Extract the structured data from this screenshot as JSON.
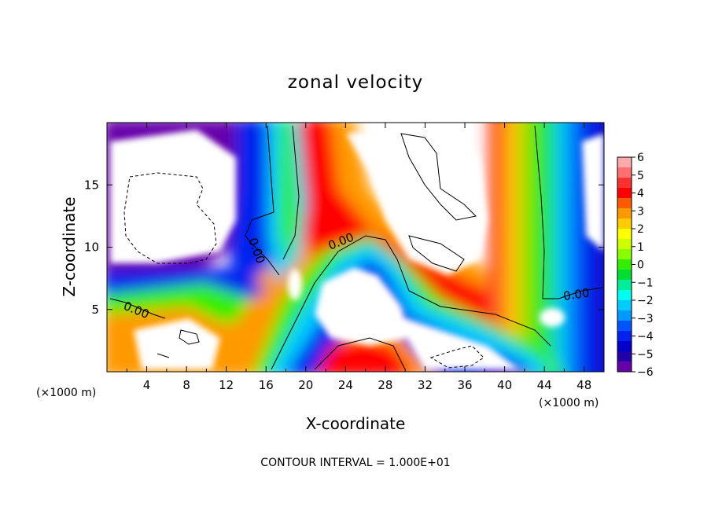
{
  "chart_data": {
    "type": "heatmap",
    "title": "zonal velocity",
    "xlabel": "X-coordinate",
    "ylabel": "Z-coordinate",
    "x_unit_label": "(×1000 m)",
    "x_unit_label_right": "(×1000 m)",
    "xlim": [
      0,
      50
    ],
    "ylim": [
      0,
      20
    ],
    "x_ticks": [
      "4",
      "8",
      "12",
      "16",
      "20",
      "24",
      "28",
      "32",
      "36",
      "40",
      "44",
      "48"
    ],
    "y_ticks": [
      "5",
      "10",
      "15"
    ],
    "colorbar": {
      "range": [
        -6,
        6
      ],
      "tick_labels": [
        "6",
        "5",
        "4",
        "3",
        "2",
        "1",
        "0",
        "−1",
        "−2",
        "−3",
        "−4",
        "−5",
        "−6"
      ],
      "colors": [
        "#ffaaaa",
        "#ff7070",
        "#ff3030",
        "#ff0000",
        "#ff5a00",
        "#ff9900",
        "#ffcc00",
        "#ffff00",
        "#ccff00",
        "#88ff00",
        "#33ee00",
        "#00dd33",
        "#00ee99",
        "#00ffee",
        "#00ccff",
        "#0099ff",
        "#0055ff",
        "#0022ee",
        "#0000cc",
        "#2200aa",
        "#6600aa"
      ]
    },
    "contour_labels": [
      "0.00",
      "0.00",
      "0.00",
      "0.00"
    ],
    "footer": "CONTOUR INTERVAL = 1.000E+01"
  }
}
